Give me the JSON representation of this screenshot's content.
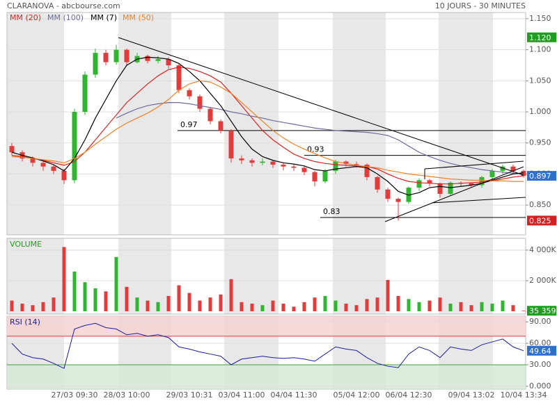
{
  "header": {
    "title": "CLARANOVA - abcbourse.com",
    "period": "10 JOURS - 30 MINUTES"
  },
  "chart_data": [
    {
      "type": "candlestick",
      "categories": [
        null,
        null,
        null,
        null,
        null,
        null,
        "27/03 09:30",
        null,
        null,
        null,
        null,
        "28/03 10:00",
        null,
        null,
        null,
        null,
        null,
        "29/03 10:31",
        null,
        null,
        null,
        null,
        "03/04 11:00",
        null,
        null,
        null,
        null,
        "04/04 11:30",
        null,
        null,
        null,
        null,
        null,
        "05/04 12:00",
        null,
        null,
        null,
        null,
        "06/04 12:30",
        null,
        null,
        null,
        null,
        null,
        "09/04 13:02",
        null,
        null,
        null,
        null,
        "10/04 13:34"
      ],
      "open": [
        0.945,
        0.935,
        0.925,
        0.918,
        0.912,
        0.905,
        0.89,
        1.0,
        1.06,
        1.095,
        1.08,
        1.1,
        1.08,
        1.09,
        1.082,
        1.085,
        1.075,
        1.035,
        1.025,
        1.005,
        0.985,
        0.97,
        0.925,
        0.922,
        0.918,
        0.92,
        0.915,
        0.912,
        0.91,
        0.903,
        0.888,
        0.905,
        0.92,
        0.916,
        0.915,
        0.895,
        0.875,
        0.86,
        0.855,
        0.878,
        0.89,
        0.885,
        0.868,
        0.886,
        0.885,
        0.882,
        0.895,
        0.905,
        0.912,
        0.905
      ],
      "high": [
        0.95,
        0.938,
        0.928,
        0.92,
        0.915,
        0.908,
        1.005,
        1.065,
        1.102,
        1.1,
        1.108,
        1.102,
        1.095,
        1.092,
        1.09,
        1.088,
        1.078,
        1.038,
        1.028,
        1.008,
        0.988,
        0.972,
        0.93,
        0.925,
        0.925,
        0.922,
        0.918,
        0.915,
        0.912,
        0.905,
        0.908,
        0.923,
        0.922,
        0.92,
        0.917,
        0.897,
        0.878,
        0.862,
        0.88,
        0.893,
        0.892,
        0.886,
        0.888,
        0.888,
        0.886,
        0.897,
        0.908,
        0.915,
        0.915,
        0.907
      ],
      "low": [
        0.93,
        0.92,
        0.912,
        0.905,
        0.9,
        0.884,
        0.885,
        0.995,
        1.055,
        1.075,
        1.076,
        1.075,
        1.078,
        1.078,
        1.078,
        1.07,
        1.03,
        1.02,
        1.0,
        0.98,
        0.965,
        0.918,
        0.916,
        0.912,
        0.914,
        0.91,
        0.906,
        0.905,
        0.898,
        0.88,
        0.885,
        0.9,
        0.912,
        0.91,
        0.89,
        0.87,
        0.855,
        0.825,
        0.852,
        0.873,
        0.88,
        0.862,
        0.865,
        0.88,
        0.878,
        0.878,
        0.89,
        0.9,
        0.9,
        0.894
      ],
      "close": [
        0.935,
        0.925,
        0.918,
        0.912,
        0.905,
        0.89,
        1.0,
        1.06,
        1.095,
        1.08,
        1.1,
        1.08,
        1.09,
        1.082,
        1.085,
        1.075,
        1.035,
        1.025,
        1.005,
        0.985,
        0.97,
        0.925,
        0.922,
        0.918,
        0.92,
        0.915,
        0.912,
        0.91,
        0.903,
        0.888,
        0.905,
        0.92,
        0.916,
        0.915,
        0.895,
        0.875,
        0.86,
        0.855,
        0.878,
        0.89,
        0.885,
        0.868,
        0.886,
        0.885,
        0.882,
        0.895,
        0.905,
        0.912,
        0.905,
        0.897
      ],
      "up_color": "#2fb52f",
      "down_color": "#e33b3b",
      "series": [
        {
          "name": "MM (20)",
          "color": "#e32020",
          "values": [
            0.93,
            0.928,
            0.925,
            0.922,
            0.918,
            0.914,
            0.92,
            0.935,
            0.955,
            0.975,
            0.995,
            1.015,
            1.03,
            1.045,
            1.058,
            1.068,
            1.072,
            1.07,
            1.065,
            1.058,
            1.048,
            1.03,
            1.01,
            0.99,
            0.97,
            0.955,
            0.943,
            0.932,
            0.925,
            0.92,
            0.917,
            0.915,
            0.914,
            0.913,
            0.912,
            0.908,
            0.9,
            0.893,
            0.888,
            0.886,
            0.885,
            0.884,
            0.884,
            0.885,
            0.886,
            0.887,
            0.889,
            0.892,
            0.895,
            0.897
          ]
        },
        {
          "name": "MM (100)",
          "color": "#6b6b9e",
          "values": [
            null,
            null,
            null,
            null,
            null,
            null,
            null,
            null,
            null,
            null,
            0.99,
            0.998,
            1.005,
            1.01,
            1.013,
            1.015,
            1.015,
            1.013,
            1.01,
            1.007,
            1.004,
            1.0,
            0.997,
            0.993,
            0.99,
            0.986,
            0.983,
            0.98,
            0.977,
            0.974,
            0.972,
            0.97,
            0.969,
            0.968,
            0.967,
            0.965,
            0.962,
            0.955,
            0.945,
            0.935,
            0.928,
            0.922,
            0.917,
            0.913,
            0.91,
            0.907,
            0.905,
            0.903,
            0.901,
            0.9
          ]
        },
        {
          "name": "MM (7)",
          "color": "#000000",
          "values": [
            0.935,
            0.93,
            0.926,
            0.921,
            0.915,
            0.905,
            0.925,
            0.955,
            0.99,
            1.02,
            1.05,
            1.075,
            1.085,
            1.088,
            1.087,
            1.085,
            1.078,
            1.065,
            1.05,
            1.03,
            1.01,
            0.985,
            0.96,
            0.94,
            0.928,
            0.922,
            0.918,
            0.916,
            0.913,
            0.907,
            0.905,
            0.908,
            0.91,
            0.912,
            0.91,
            0.9,
            0.888,
            0.872,
            0.866,
            0.87,
            0.878,
            0.88,
            0.878,
            0.88,
            0.882,
            0.885,
            0.89,
            0.895,
            0.9,
            0.902
          ]
        },
        {
          "name": "MM (50)",
          "color": "#f08020",
          "values": [
            0.928,
            0.927,
            0.925,
            0.923,
            0.921,
            0.918,
            0.925,
            0.935,
            0.948,
            0.96,
            0.972,
            0.982,
            0.99,
            0.998,
            1.008,
            1.02,
            1.035,
            1.045,
            1.05,
            1.048,
            1.04,
            1.03,
            1.015,
            1.0,
            0.985,
            0.97,
            0.958,
            0.948,
            0.94,
            0.933,
            0.926,
            0.92,
            0.917,
            0.914,
            0.912,
            0.91,
            0.906,
            0.903,
            0.9,
            0.898,
            0.896,
            0.894,
            0.892,
            0.891,
            0.89,
            0.89,
            0.889,
            0.889,
            0.888,
            0.888
          ]
        }
      ],
      "ylim": [
        0.802,
        1.16
      ],
      "yticks": [
        {
          "value": 0.85,
          "label": "0.850"
        },
        {
          "value": 0.9,
          "label": "0.900"
        },
        {
          "value": 0.95,
          "label": "0.950"
        },
        {
          "value": 1.0,
          "label": "1.000"
        },
        {
          "value": 1.05,
          "label": "1.050"
        },
        {
          "value": 1.1,
          "label": "1.100"
        },
        {
          "value": 1.15,
          "label": "1.150"
        }
      ],
      "levels": [
        {
          "value": 0.97,
          "label": "0.97"
        },
        {
          "value": 0.93,
          "label": "0.93"
        },
        {
          "value": 0.83,
          "label": "0.83"
        }
      ],
      "badges": [
        {
          "value": 1.12,
          "label": "1.120",
          "color": "#1e9e1e"
        },
        {
          "value": 0.897,
          "label": "0.897",
          "color": "#2f6fd0"
        },
        {
          "value": 0.825,
          "label": "0.825",
          "color": "#d42020"
        }
      ]
    },
    {
      "type": "bar",
      "title": "VOLUME",
      "values": [
        700000,
        500000,
        400000,
        600000,
        900000,
        4200000,
        2600000,
        1900000,
        1500000,
        1300000,
        3550000,
        1600000,
        900000,
        700000,
        600000,
        1000000,
        1700000,
        1200000,
        700000,
        900000,
        1100000,
        2100000,
        600000,
        500000,
        400000,
        700000,
        500000,
        300000,
        600000,
        900000,
        1000000,
        700000,
        500000,
        400000,
        800000,
        900000,
        2050000,
        1000000,
        800000,
        600000,
        700000,
        900000,
        500000,
        600000,
        400000,
        600000,
        500000,
        700000,
        400000,
        35359
      ],
      "ylim": [
        0,
        4770000
      ],
      "yticks": [
        {
          "value": 2000000,
          "label": "2 000K"
        },
        {
          "value": 4000000,
          "label": "4 000K"
        }
      ],
      "badges": [
        {
          "value": 35359,
          "label": "35 359",
          "color": "#1e9e1e"
        }
      ]
    },
    {
      "type": "line",
      "title": "RSI (14)",
      "color": "#1a1aa8",
      "values": [
        60,
        45,
        40,
        38,
        32,
        25,
        80,
        85,
        88,
        82,
        80,
        72,
        74,
        70,
        72,
        68,
        55,
        52,
        48,
        45,
        42,
        30,
        38,
        40,
        42,
        40,
        39,
        40,
        38,
        35,
        45,
        55,
        52,
        50,
        40,
        32,
        28,
        26,
        45,
        55,
        50,
        40,
        55,
        52,
        50,
        58,
        62,
        66,
        55,
        49.64
      ],
      "ylim": [
        -4,
        98
      ],
      "yticks": [
        {
          "value": 0,
          "label": "0.000"
        },
        {
          "value": 30,
          "label": "30.00"
        },
        {
          "value": 60,
          "label": "60.00"
        },
        {
          "value": 90,
          "label": "90.00"
        }
      ],
      "zones": [
        {
          "value": 70,
          "color": "#f6cfcf",
          "line": "#d04040",
          "side": "above"
        },
        {
          "value": 30,
          "color": "#d4e8d4",
          "line": "#40a040",
          "side": "below"
        }
      ],
      "badges": [
        {
          "value": 49.64,
          "color": "#2f6fd0"
        }
      ]
    }
  ]
}
